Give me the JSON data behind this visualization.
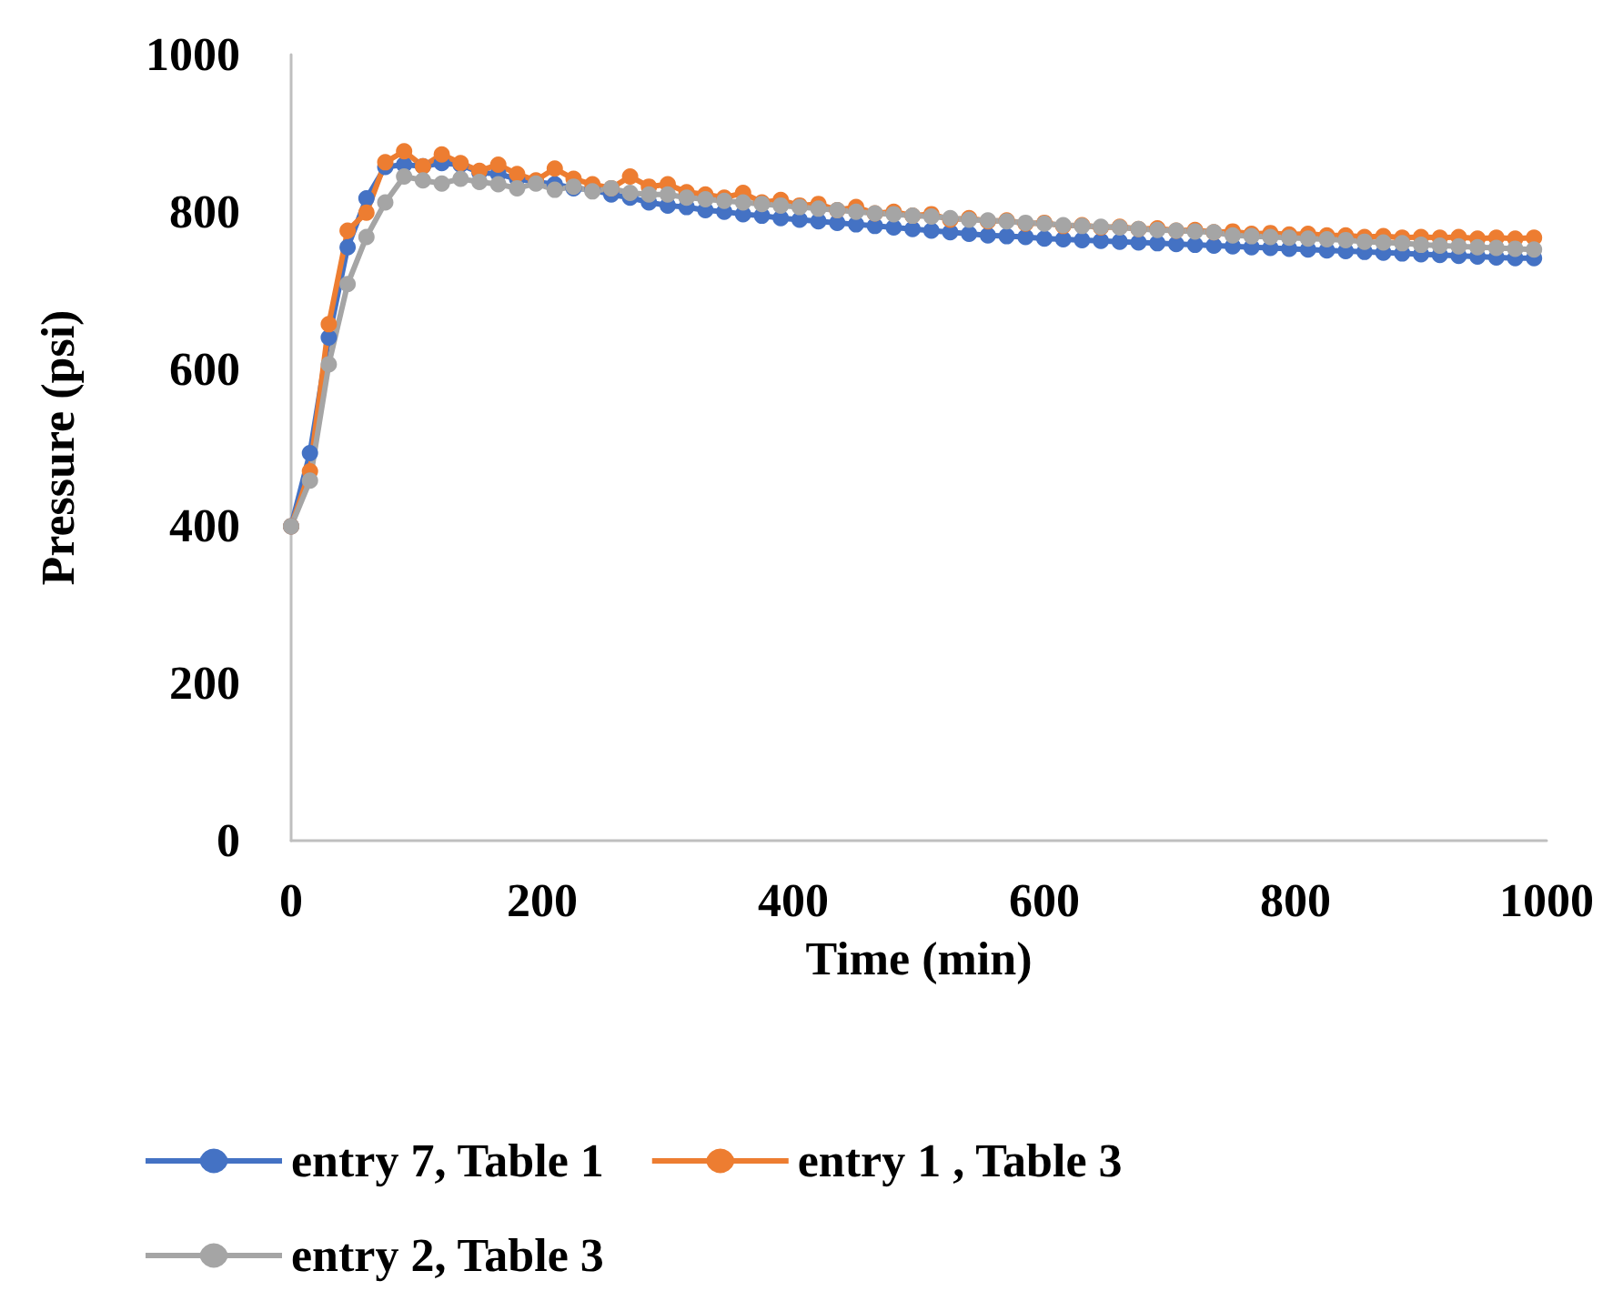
{
  "chart_data": {
    "type": "line",
    "xlabel": "Time (min)",
    "ylabel": "Pressure (psi)",
    "x": [
      0,
      15,
      30,
      45,
      60,
      75,
      90,
      105,
      120,
      135,
      150,
      165,
      180,
      195,
      210,
      225,
      240,
      255,
      270,
      285,
      300,
      315,
      330,
      345,
      360,
      375,
      390,
      405,
      420,
      435,
      450,
      465,
      480,
      495,
      510,
      525,
      540,
      555,
      570,
      585,
      600,
      615,
      630,
      645,
      660,
      675,
      690,
      705,
      720,
      735,
      750,
      765,
      780,
      795,
      810,
      825,
      840,
      855,
      870,
      885,
      900,
      915,
      930,
      945,
      960,
      975,
      990
    ],
    "series": [
      {
        "name": "entry 7, Table 1",
        "color": "#4472c4",
        "values": [
          400,
          493,
          640,
          755,
          817,
          857,
          860,
          858,
          862,
          860,
          850,
          848,
          842,
          838,
          835,
          830,
          828,
          822,
          818,
          812,
          808,
          806,
          802,
          800,
          797,
          795,
          792,
          790,
          788,
          786,
          784,
          782,
          780,
          778,
          776,
          774,
          772,
          770,
          769,
          768,
          766,
          765,
          764,
          763,
          762,
          761,
          760,
          759,
          758,
          757,
          756,
          755,
          754,
          753,
          752,
          751,
          750,
          749,
          748,
          747,
          746,
          745,
          744,
          743,
          742,
          741,
          741
        ]
      },
      {
        "name": "entry 1 , Table 3",
        "color": "#ed7d31",
        "values": [
          400,
          470,
          657,
          776,
          799,
          863,
          877,
          858,
          873,
          862,
          852,
          860,
          848,
          840,
          855,
          842,
          835,
          830,
          845,
          832,
          835,
          825,
          822,
          818,
          824,
          812,
          815,
          808,
          810,
          802,
          806,
          798,
          800,
          795,
          797,
          790,
          792,
          788,
          789,
          785,
          786,
          782,
          783,
          780,
          781,
          778,
          779,
          776,
          777,
          774,
          775,
          772,
          773,
          771,
          772,
          770,
          770,
          768,
          769,
          767,
          768,
          767,
          768,
          766,
          767,
          766,
          767
        ]
      },
      {
        "name": "entry 2, Table 3",
        "color": "#a5a5a5",
        "values": [
          400,
          458,
          606,
          708,
          768,
          812,
          845,
          840,
          836,
          842,
          838,
          835,
          830,
          836,
          828,
          832,
          826,
          830,
          824,
          822,
          822,
          818,
          816,
          814,
          812,
          810,
          808,
          806,
          804,
          802,
          800,
          798,
          797,
          795,
          794,
          792,
          790,
          789,
          788,
          786,
          785,
          783,
          782,
          781,
          780,
          778,
          777,
          776,
          775,
          774,
          770,
          769,
          768,
          767,
          766,
          765,
          764,
          762,
          761,
          760,
          758,
          757,
          756,
          755,
          754,
          753,
          752
        ]
      }
    ],
    "xlim": [
      0,
      1000
    ],
    "xticks": [
      0,
      200,
      400,
      600,
      800,
      1000
    ],
    "ylim": [
      0,
      1000
    ],
    "yticks": [
      0,
      200,
      400,
      600,
      800,
      1000
    ],
    "grid": false,
    "legend": "bottom",
    "marker": "circle",
    "line_style": "solid"
  }
}
